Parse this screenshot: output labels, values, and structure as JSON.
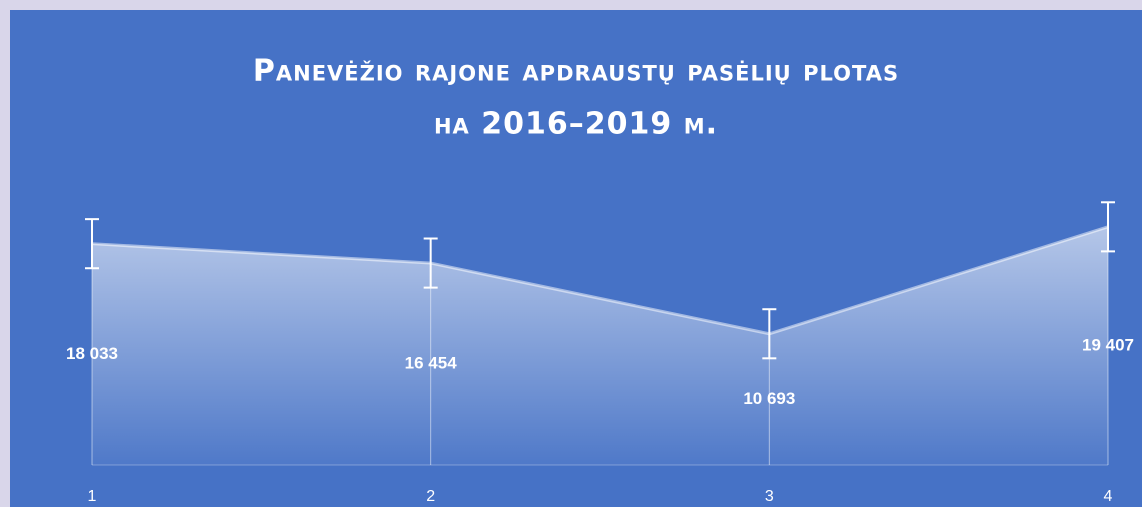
{
  "chart_data": {
    "type": "area",
    "title_lines": [
      "Panevėžio rajone apdraustų pasėlių plotas",
      "на 2016–2019 м."
    ],
    "categories": [
      "1",
      "2",
      "3",
      "4"
    ],
    "values": [
      18033,
      16454,
      10693,
      19407
    ],
    "value_labels": [
      "18 033",
      "16 454",
      "10 693",
      "19 407"
    ],
    "errors": [
      2000,
      2000,
      2000,
      2000
    ],
    "color": "#ffffff",
    "ylim": [
      0,
      22000
    ]
  }
}
